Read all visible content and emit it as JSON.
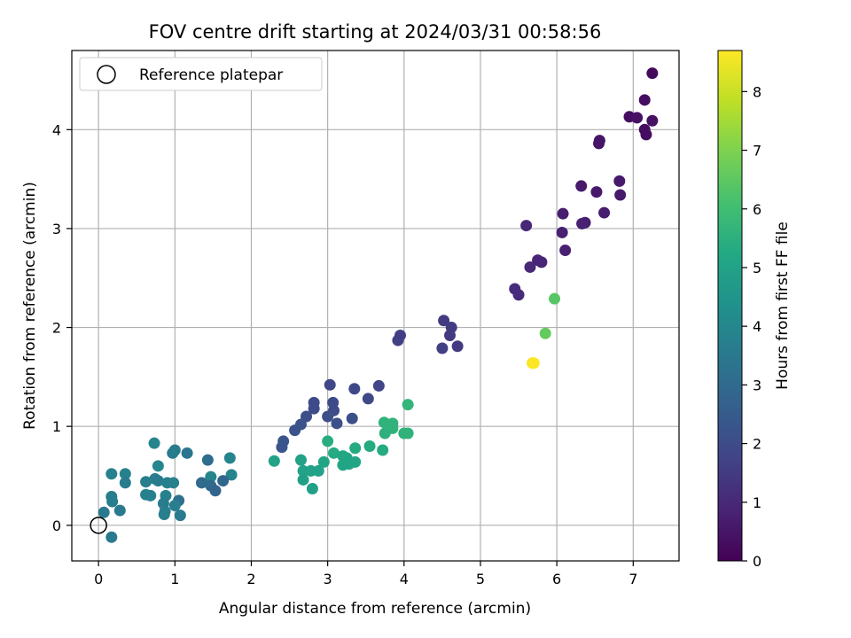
{
  "chart_data": {
    "type": "scatter",
    "title": "FOV centre drift starting at 2024/03/31 00:58:56",
    "xlabel": "Angular distance from reference (arcmin)",
    "ylabel": "Rotation from reference (arcmin)",
    "xlim": [
      -0.35,
      7.6
    ],
    "ylim": [
      -0.36,
      4.8
    ],
    "xticks": [
      0,
      1,
      2,
      3,
      4,
      5,
      6,
      7
    ],
    "yticks": [
      0,
      1,
      2,
      3,
      4
    ],
    "grid": true,
    "legend": {
      "label": "Reference platepar",
      "placement": "top-left",
      "marker": "open-circle"
    },
    "reference_point": {
      "x": 0,
      "y": 0
    },
    "colorbar": {
      "label": "Hours from first FF file",
      "colormap": "viridis",
      "range": [
        0,
        8.7
      ],
      "ticks": [
        0,
        1,
        2,
        3,
        4,
        5,
        6,
        7,
        8
      ]
    },
    "points": [
      {
        "x": 7.25,
        "y": 4.57,
        "c": 0.2
      },
      {
        "x": 7.15,
        "y": 4.3,
        "c": 0.3
      },
      {
        "x": 6.95,
        "y": 4.13,
        "c": 0.3
      },
      {
        "x": 7.05,
        "y": 4.12,
        "c": 0.4
      },
      {
        "x": 7.25,
        "y": 4.09,
        "c": 0.4
      },
      {
        "x": 7.15,
        "y": 4.0,
        "c": 0.3
      },
      {
        "x": 7.17,
        "y": 3.95,
        "c": 0.3
      },
      {
        "x": 6.56,
        "y": 3.89,
        "c": 0.5
      },
      {
        "x": 6.55,
        "y": 3.86,
        "c": 0.5
      },
      {
        "x": 6.82,
        "y": 3.48,
        "c": 0.6
      },
      {
        "x": 6.32,
        "y": 3.43,
        "c": 0.6
      },
      {
        "x": 6.52,
        "y": 3.37,
        "c": 0.6
      },
      {
        "x": 6.83,
        "y": 3.34,
        "c": 0.6
      },
      {
        "x": 6.62,
        "y": 3.16,
        "c": 0.7
      },
      {
        "x": 6.08,
        "y": 3.15,
        "c": 0.7
      },
      {
        "x": 6.37,
        "y": 3.06,
        "c": 0.7
      },
      {
        "x": 6.33,
        "y": 3.05,
        "c": 0.8
      },
      {
        "x": 5.6,
        "y": 3.03,
        "c": 1.0
      },
      {
        "x": 6.07,
        "y": 2.96,
        "c": 0.8
      },
      {
        "x": 6.11,
        "y": 2.78,
        "c": 0.8
      },
      {
        "x": 5.75,
        "y": 2.68,
        "c": 0.9
      },
      {
        "x": 5.8,
        "y": 2.66,
        "c": 0.9
      },
      {
        "x": 5.65,
        "y": 2.61,
        "c": 1.0
      },
      {
        "x": 5.45,
        "y": 2.39,
        "c": 1.1
      },
      {
        "x": 5.5,
        "y": 2.33,
        "c": 1.1
      },
      {
        "x": 5.97,
        "y": 2.29,
        "c": 6.4
      },
      {
        "x": 5.85,
        "y": 1.94,
        "c": 6.6
      },
      {
        "x": 5.68,
        "y": 1.64,
        "c": 8.6
      },
      {
        "x": 5.7,
        "y": 1.64,
        "c": 8.7
      },
      {
        "x": 4.52,
        "y": 2.07,
        "c": 1.5
      },
      {
        "x": 4.62,
        "y": 2.0,
        "c": 1.5
      },
      {
        "x": 4.6,
        "y": 1.92,
        "c": 1.5
      },
      {
        "x": 4.7,
        "y": 1.81,
        "c": 1.5
      },
      {
        "x": 4.5,
        "y": 1.79,
        "c": 1.6
      },
      {
        "x": 3.95,
        "y": 1.92,
        "c": 1.6
      },
      {
        "x": 3.92,
        "y": 1.87,
        "c": 1.6
      },
      {
        "x": 3.03,
        "y": 1.42,
        "c": 1.8
      },
      {
        "x": 3.67,
        "y": 1.41,
        "c": 1.8
      },
      {
        "x": 3.35,
        "y": 1.38,
        "c": 1.9
      },
      {
        "x": 3.53,
        "y": 1.28,
        "c": 1.9
      },
      {
        "x": 2.82,
        "y": 1.24,
        "c": 2.0
      },
      {
        "x": 2.82,
        "y": 1.18,
        "c": 2.0
      },
      {
        "x": 3.07,
        "y": 1.24,
        "c": 2.0
      },
      {
        "x": 3.08,
        "y": 1.16,
        "c": 2.0
      },
      {
        "x": 3.0,
        "y": 1.1,
        "c": 2.1
      },
      {
        "x": 2.72,
        "y": 1.1,
        "c": 2.1
      },
      {
        "x": 3.32,
        "y": 1.08,
        "c": 2.1
      },
      {
        "x": 3.12,
        "y": 1.03,
        "c": 2.1
      },
      {
        "x": 2.65,
        "y": 1.02,
        "c": 2.2
      },
      {
        "x": 2.57,
        "y": 0.96,
        "c": 2.2
      },
      {
        "x": 2.42,
        "y": 0.85,
        "c": 2.3
      },
      {
        "x": 2.4,
        "y": 0.79,
        "c": 2.3
      },
      {
        "x": 4.05,
        "y": 1.22,
        "c": 5.7
      },
      {
        "x": 3.74,
        "y": 1.04,
        "c": 5.6
      },
      {
        "x": 3.85,
        "y": 1.03,
        "c": 5.6
      },
      {
        "x": 3.85,
        "y": 0.98,
        "c": 5.6
      },
      {
        "x": 3.75,
        "y": 0.93,
        "c": 5.5
      },
      {
        "x": 4.0,
        "y": 0.93,
        "c": 5.6
      },
      {
        "x": 4.05,
        "y": 0.93,
        "c": 5.6
      },
      {
        "x": 3.0,
        "y": 0.85,
        "c": 5.4
      },
      {
        "x": 3.55,
        "y": 0.8,
        "c": 5.3
      },
      {
        "x": 3.36,
        "y": 0.78,
        "c": 5.3
      },
      {
        "x": 3.72,
        "y": 0.76,
        "c": 5.3
      },
      {
        "x": 3.08,
        "y": 0.73,
        "c": 5.3
      },
      {
        "x": 3.2,
        "y": 0.7,
        "c": 5.2
      },
      {
        "x": 3.25,
        "y": 0.68,
        "c": 5.2
      },
      {
        "x": 2.3,
        "y": 0.65,
        "c": 5.0
      },
      {
        "x": 2.65,
        "y": 0.66,
        "c": 5.0
      },
      {
        "x": 2.95,
        "y": 0.64,
        "c": 5.1
      },
      {
        "x": 3.36,
        "y": 0.64,
        "c": 5.1
      },
      {
        "x": 3.2,
        "y": 0.61,
        "c": 5.1
      },
      {
        "x": 3.28,
        "y": 0.62,
        "c": 5.1
      },
      {
        "x": 2.68,
        "y": 0.55,
        "c": 5.0
      },
      {
        "x": 2.78,
        "y": 0.55,
        "c": 5.0
      },
      {
        "x": 2.88,
        "y": 0.55,
        "c": 5.0
      },
      {
        "x": 2.68,
        "y": 0.46,
        "c": 4.9
      },
      {
        "x": 2.8,
        "y": 0.37,
        "c": 4.9
      },
      {
        "x": 0.73,
        "y": 0.83,
        "c": 3.9
      },
      {
        "x": 1.0,
        "y": 0.76,
        "c": 3.6
      },
      {
        "x": 0.97,
        "y": 0.73,
        "c": 3.6
      },
      {
        "x": 1.16,
        "y": 0.73,
        "c": 3.4
      },
      {
        "x": 1.72,
        "y": 0.68,
        "c": 3.9
      },
      {
        "x": 1.43,
        "y": 0.66,
        "c": 3.1
      },
      {
        "x": 0.78,
        "y": 0.6,
        "c": 4.0
      },
      {
        "x": 0.17,
        "y": 0.52,
        "c": 3.8
      },
      {
        "x": 0.35,
        "y": 0.52,
        "c": 3.8
      },
      {
        "x": 1.74,
        "y": 0.51,
        "c": 3.9
      },
      {
        "x": 1.47,
        "y": 0.49,
        "c": 3.9
      },
      {
        "x": 0.62,
        "y": 0.44,
        "c": 3.7
      },
      {
        "x": 0.74,
        "y": 0.47,
        "c": 3.7
      },
      {
        "x": 0.78,
        "y": 0.45,
        "c": 3.6
      },
      {
        "x": 0.35,
        "y": 0.43,
        "c": 3.6
      },
      {
        "x": 0.9,
        "y": 0.43,
        "c": 3.8
      },
      {
        "x": 0.98,
        "y": 0.43,
        "c": 3.8
      },
      {
        "x": 1.35,
        "y": 0.43,
        "c": 3.0
      },
      {
        "x": 1.47,
        "y": 0.4,
        "c": 3.0
      },
      {
        "x": 1.63,
        "y": 0.45,
        "c": 2.9
      },
      {
        "x": 1.53,
        "y": 0.35,
        "c": 2.8
      },
      {
        "x": 0.62,
        "y": 0.31,
        "c": 3.8
      },
      {
        "x": 0.68,
        "y": 0.3,
        "c": 3.8
      },
      {
        "x": 0.88,
        "y": 0.3,
        "c": 3.8
      },
      {
        "x": 0.85,
        "y": 0.22,
        "c": 3.6
      },
      {
        "x": 0.87,
        "y": 0.14,
        "c": 3.7
      },
      {
        "x": 0.86,
        "y": 0.11,
        "c": 3.7
      },
      {
        "x": 1.05,
        "y": 0.25,
        "c": 3.2
      },
      {
        "x": 1.0,
        "y": 0.2,
        "c": 3.7
      },
      {
        "x": 1.07,
        "y": 0.1,
        "c": 3.6
      },
      {
        "x": 0.17,
        "y": 0.29,
        "c": 3.7
      },
      {
        "x": 0.18,
        "y": 0.24,
        "c": 3.7
      },
      {
        "x": 0.28,
        "y": 0.15,
        "c": 3.5
      },
      {
        "x": 0.07,
        "y": 0.13,
        "c": 3.5
      },
      {
        "x": 0.17,
        "y": -0.12,
        "c": 3.5
      }
    ]
  }
}
